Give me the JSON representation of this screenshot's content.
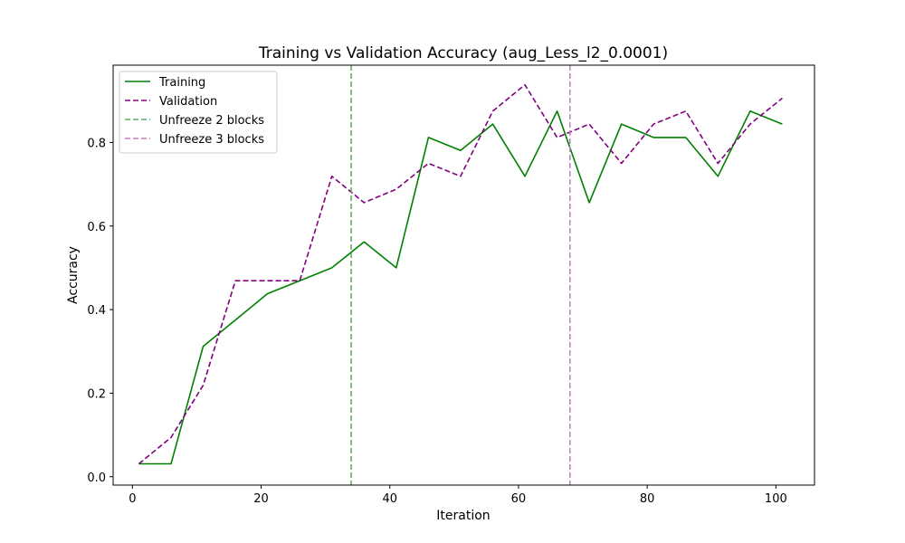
{
  "chart_data": {
    "type": "line",
    "title": "Training vs Validation Accuracy (aug_Less_l2_0.0001)",
    "xlabel": "Iteration",
    "ylabel": "Accuracy",
    "xlim": [
      -3.0,
      106.0
    ],
    "ylim": [
      -0.02,
      0.985
    ],
    "xticks": [
      0,
      20,
      40,
      60,
      80,
      100
    ],
    "yticks": [
      0.0,
      0.2,
      0.4,
      0.6,
      0.8
    ],
    "xtick_labels": [
      "0",
      "20",
      "40",
      "60",
      "80",
      "100"
    ],
    "ytick_labels": [
      "0.0",
      "0.2",
      "0.4",
      "0.6",
      "0.8"
    ],
    "grid": false,
    "legend_position": "top-left",
    "x": [
      1,
      6,
      11,
      16,
      21,
      26,
      31,
      36,
      41,
      46,
      51,
      56,
      61,
      66,
      71,
      76,
      81,
      86,
      91,
      96,
      101
    ],
    "series": [
      {
        "name": "Training",
        "color": "#008000",
        "style": "solid",
        "values": [
          0.031,
          0.031,
          0.312,
          0.375,
          0.438,
          0.469,
          0.5,
          0.562,
          0.5,
          0.812,
          0.781,
          0.844,
          0.719,
          0.875,
          0.656,
          0.844,
          0.812,
          0.812,
          0.719,
          0.875,
          0.844
        ]
      },
      {
        "name": "Validation",
        "color": "#800080",
        "style": "dashed",
        "values": [
          0.031,
          0.094,
          0.219,
          0.469,
          0.469,
          0.469,
          0.719,
          0.656,
          0.688,
          0.75,
          0.719,
          0.875,
          0.938,
          0.812,
          0.844,
          0.75,
          0.844,
          0.875,
          0.75,
          0.844,
          0.906
        ]
      }
    ],
    "vlines": [
      {
        "name": "Unfreeze 2 blocks",
        "x": 34,
        "color": "#5aa85a",
        "style": "dashed"
      },
      {
        "name": "Unfreeze 3 blocks",
        "x": 68,
        "color": "#bf7fbf",
        "style": "dashed"
      }
    ]
  }
}
